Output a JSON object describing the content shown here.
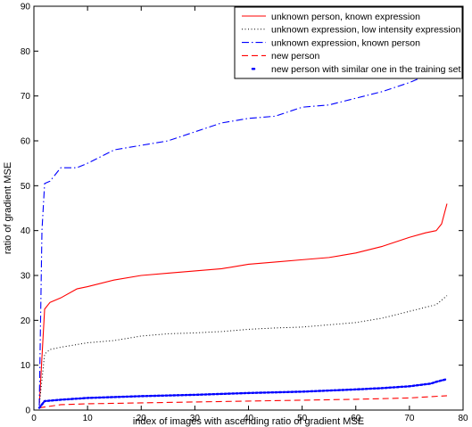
{
  "chart_data": {
    "type": "line",
    "xlabel": "index of images with ascending ratio of gradient MSE",
    "ylabel": "ratio of gradient MSE",
    "xlim": [
      0,
      80
    ],
    "ylim": [
      0,
      90
    ],
    "xticks": [
      "0",
      "10",
      "20",
      "30",
      "40",
      "50",
      "60",
      "70",
      "80"
    ],
    "yticks": [
      "0",
      "10",
      "20",
      "30",
      "40",
      "50",
      "60",
      "70",
      "80",
      "90"
    ],
    "grid": false,
    "legend_position": "top-right",
    "series": [
      {
        "name": "unknown person, known expression",
        "color": "#ff0000",
        "style": "solid",
        "x": [
          1,
          2,
          3,
          5,
          8,
          10,
          15,
          20,
          25,
          30,
          35,
          40,
          45,
          50,
          55,
          60,
          65,
          70,
          73,
          75,
          76,
          77
        ],
        "y": [
          1,
          22.5,
          24,
          25,
          27,
          27.5,
          29,
          30,
          30.5,
          31,
          31.5,
          32.5,
          33,
          33.5,
          34,
          35,
          36.5,
          38.5,
          39.5,
          40,
          41.5,
          46
        ]
      },
      {
        "name": "unknown expression, low intensity expression",
        "color": "#000000",
        "style": "dotted",
        "x": [
          1,
          2,
          3,
          5,
          10,
          15,
          20,
          25,
          30,
          35,
          40,
          45,
          50,
          55,
          60,
          65,
          70,
          75,
          77
        ],
        "y": [
          1,
          12.5,
          13.5,
          14,
          15,
          15.5,
          16.5,
          17,
          17.2,
          17.5,
          18,
          18.3,
          18.5,
          19,
          19.5,
          20.5,
          22,
          23.5,
          25.5
        ]
      },
      {
        "name": "unknown expression, known person",
        "color": "#0000ff",
        "style": "dashdot",
        "x": [
          1,
          1.5,
          2,
          3,
          4,
          5,
          8,
          10,
          15,
          20,
          25,
          30,
          35,
          40,
          45,
          50,
          55,
          60,
          65,
          70,
          72
        ],
        "y": [
          1,
          40,
          50.5,
          51,
          52.5,
          54,
          54,
          55,
          58,
          59,
          60,
          62,
          64,
          65,
          65.5,
          67.5,
          68,
          69.5,
          71,
          73,
          74
        ]
      },
      {
        "name": "new person",
        "color": "#ff0000",
        "style": "dashed",
        "x": [
          1,
          5,
          10,
          20,
          30,
          40,
          50,
          60,
          70,
          77
        ],
        "y": [
          0.5,
          1.2,
          1.4,
          1.6,
          1.8,
          2,
          2.2,
          2.4,
          2.7,
          3.2
        ]
      },
      {
        "name": "new person with similar one in the training set",
        "color": "#0000ff",
        "style": "dots",
        "x": [
          1,
          2,
          5,
          10,
          20,
          30,
          40,
          50,
          60,
          65,
          70,
          72,
          74,
          75,
          76,
          77
        ],
        "y": [
          0.5,
          2,
          2.3,
          2.7,
          3.1,
          3.4,
          3.8,
          4.1,
          4.6,
          4.9,
          5.3,
          5.6,
          5.9,
          6.3,
          6.6,
          6.9
        ]
      }
    ]
  }
}
